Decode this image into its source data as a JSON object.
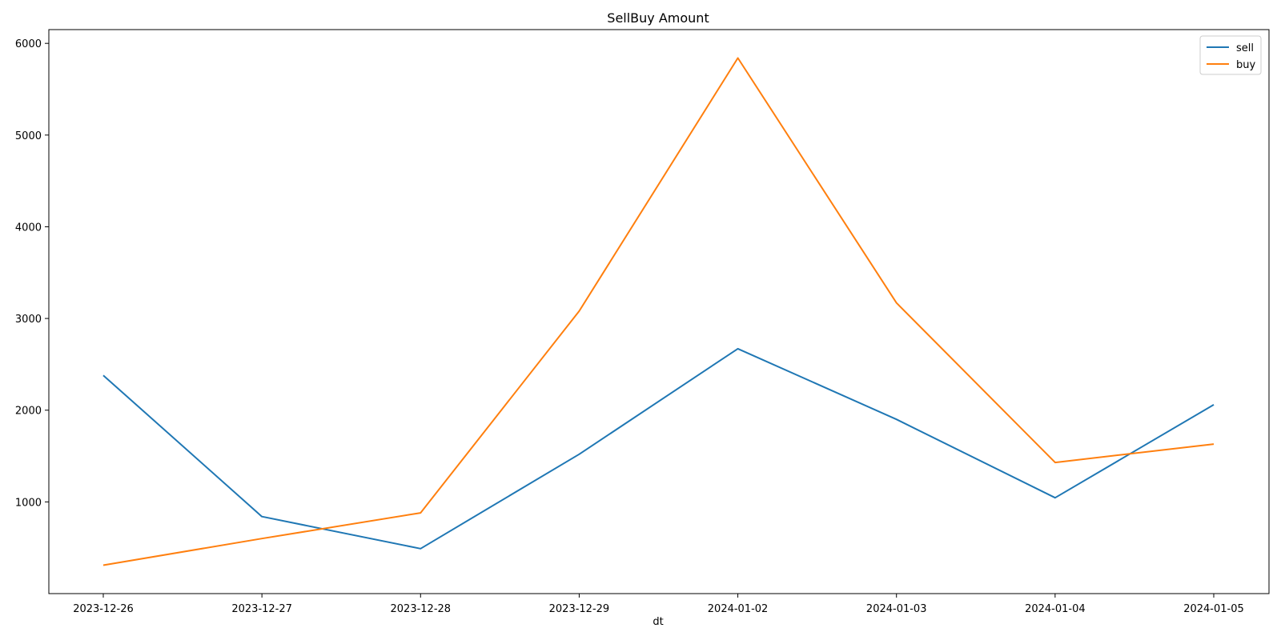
{
  "chart_data": {
    "type": "line",
    "title": "SellBuy Amount",
    "xlabel": "dt",
    "ylabel": "",
    "categories": [
      "2023-12-26",
      "2023-12-27",
      "2023-12-28",
      "2023-12-29",
      "2024-01-02",
      "2024-01-03",
      "2024-01-04",
      "2024-01-05"
    ],
    "y_ticks": [
      1000,
      2000,
      3000,
      4000,
      5000,
      6000
    ],
    "ylim": [
      0,
      6150
    ],
    "series": [
      {
        "name": "sell",
        "color": "#1f77b4",
        "values": [
          2380,
          840,
          490,
          1520,
          2670,
          1900,
          1045,
          2060
        ]
      },
      {
        "name": "buy",
        "color": "#ff7f0e",
        "values": [
          310,
          600,
          880,
          3080,
          5840,
          3170,
          1430,
          1630
        ]
      }
    ],
    "legend_position": "top-right",
    "grid": false
  }
}
